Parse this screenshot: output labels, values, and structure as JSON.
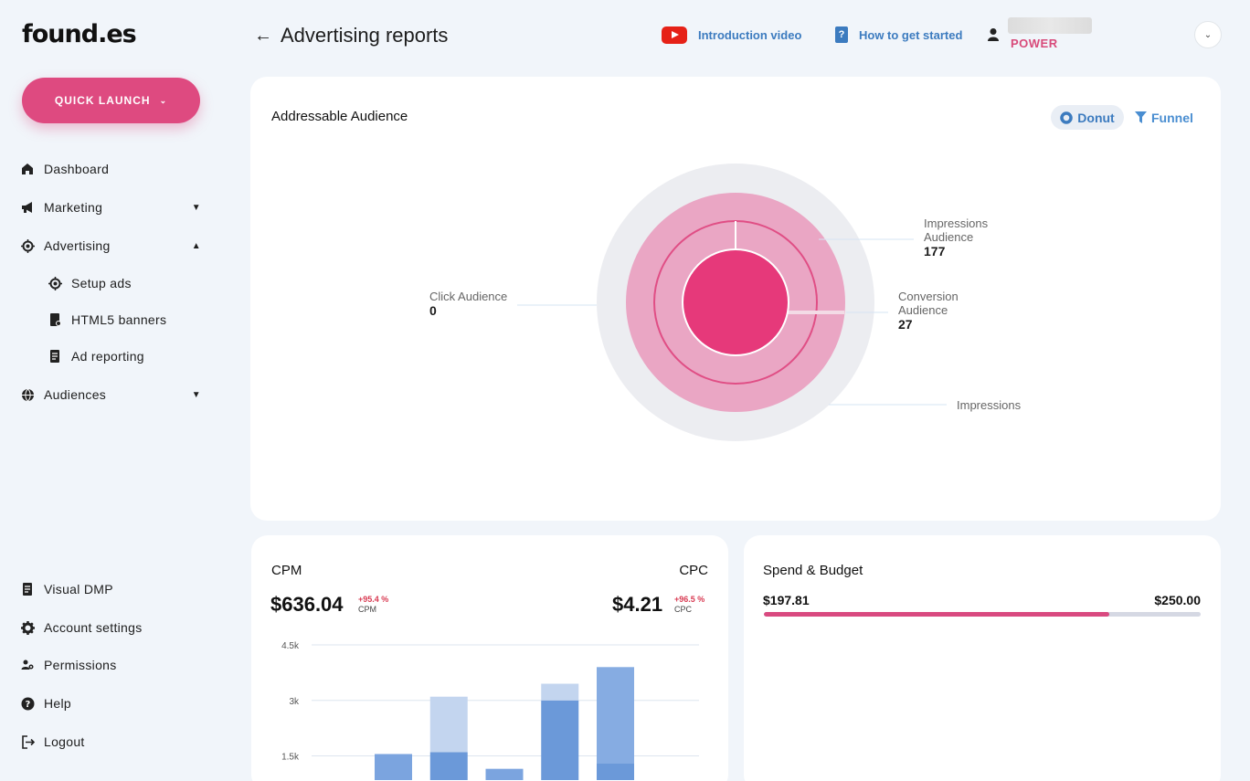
{
  "app": {
    "logo": "found.es"
  },
  "sidebar": {
    "quick_launch": "QUICK LAUNCH",
    "items": [
      {
        "label": "Dashboard",
        "icon": "home-icon"
      },
      {
        "label": "Marketing",
        "icon": "megaphone-icon"
      },
      {
        "label": "Advertising",
        "icon": "target-icon"
      },
      {
        "label": "Setup ads",
        "icon": "target-icon"
      },
      {
        "label": "HTML5 banners",
        "icon": "banner-icon"
      },
      {
        "label": "Ad reporting",
        "icon": "report-icon"
      },
      {
        "label": "Audiences",
        "icon": "globe-icon"
      }
    ],
    "bottom_items": [
      {
        "label": "Visual DMP",
        "icon": "document-icon"
      },
      {
        "label": "Account settings",
        "icon": "gear-icon"
      },
      {
        "label": "Permissions",
        "icon": "users-icon"
      },
      {
        "label": "Help",
        "icon": "help-icon"
      },
      {
        "label": "Logout",
        "icon": "logout-icon"
      }
    ]
  },
  "header": {
    "title": "Advertising reports",
    "intro_video": "Introduction video",
    "get_started": "How to get started",
    "user_role": "POWER"
  },
  "audience": {
    "title": "Addressable Audience",
    "view_donut": "Donut",
    "view_funnel": "Funnel",
    "labels": {
      "click_name": "Click Audience",
      "click_value": "0",
      "impressions_aud_line1": "Impressions",
      "impressions_aud_line2": "Audience",
      "impressions_aud_value": "177",
      "conversion_line1": "Conversion",
      "conversion_line2": "Audience",
      "conversion_value": "27",
      "impressions": "Impressions"
    },
    "colors": {
      "outer": "#ecedf1",
      "middle": "#eaa6c4",
      "core": "#e6397a",
      "ring": "#e04e85"
    }
  },
  "cpm_card": {
    "cpm_title": "CPM",
    "cpm_value": "$636.04",
    "cpm_delta": "+95.4 %",
    "cpm_unit": "CPM",
    "cpc_title": "CPC",
    "cpc_value": "$4.21",
    "cpc_delta": "+96.5 %",
    "cpc_unit": "CPC"
  },
  "chart_data": {
    "type": "bar",
    "y_ticks": [
      "4.5k",
      "3k",
      "1.5k"
    ],
    "ylim": [
      0,
      4500
    ],
    "bars": [
      {
        "stack": [
          1550
        ],
        "colors": [
          "#7ba4df"
        ]
      },
      {
        "stack": [
          1600,
          1500
        ],
        "colors": [
          "#6b99d9",
          "#c3d5ef"
        ]
      },
      {
        "stack": [
          1150
        ],
        "colors": [
          "#7ba4df"
        ]
      },
      {
        "stack": [
          3000,
          450
        ],
        "colors": [
          "#6b99d9",
          "#c3d5ef"
        ]
      },
      {
        "stack": [
          1300,
          2600
        ],
        "colors": [
          "#6b99d9",
          "#86ace2"
        ]
      }
    ]
  },
  "spend": {
    "title": "Spend & Budget",
    "spent": "$197.81",
    "budget": "$250.00",
    "fraction": 0.791
  }
}
